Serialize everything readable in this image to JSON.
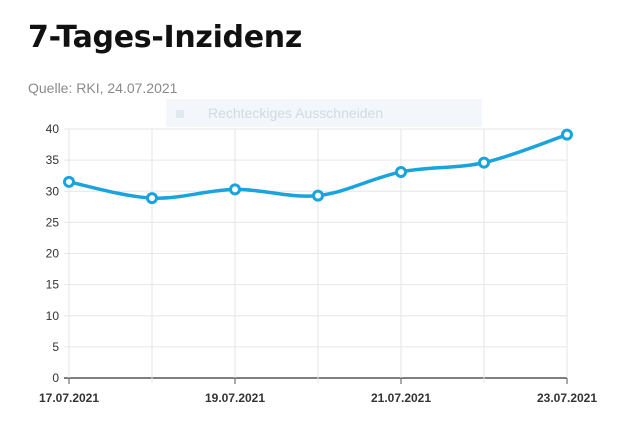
{
  "title": "7-Tages-Inzidenz",
  "subtitle": "Quelle: RKI, 24.07.2021",
  "tooltip": {
    "label": "Rechteckiges Ausschneiden"
  },
  "chart_data": {
    "type": "line",
    "title": "7-Tages-Inzidenz",
    "xlabel": "",
    "ylabel": "",
    "ylim": [
      0,
      40
    ],
    "yticks": [
      0,
      5,
      10,
      15,
      20,
      25,
      30,
      35,
      40
    ],
    "x": [
      "17.07.2021",
      "18.07.2021",
      "19.07.2021",
      "20.07.2021",
      "21.07.2021",
      "22.07.2021",
      "23.07.2021"
    ],
    "xtick_labels": [
      "17.07.2021",
      "19.07.2021",
      "21.07.2021",
      "23.07.2021"
    ],
    "values": [
      31.5,
      28.9,
      30.3,
      29.3,
      33.1,
      34.6,
      39.1
    ],
    "line_color": "#1aa3dd",
    "grid": true
  }
}
